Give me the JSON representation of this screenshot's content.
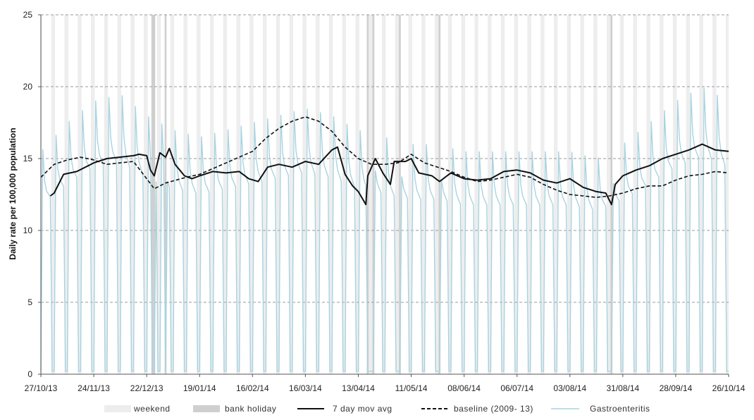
{
  "chart_data": {
    "type": "line",
    "title": "",
    "xlabel": "",
    "ylabel": "Daily rate per 100,000 population",
    "x_range": [
      "2013-10-27",
      "2014-10-26"
    ],
    "ylim": [
      0,
      25
    ],
    "y_ticks": [
      "0",
      "5",
      "10",
      "15",
      "20",
      "25"
    ],
    "x_ticks": [
      {
        "date": "2013-10-27",
        "label": "27/10/13"
      },
      {
        "date": "2013-11-24",
        "label": "24/11/13"
      },
      {
        "date": "2013-12-22",
        "label": "22/12/13"
      },
      {
        "date": "2014-01-19",
        "label": "19/01/14"
      },
      {
        "date": "2014-02-16",
        "label": "16/02/14"
      },
      {
        "date": "2014-03-16",
        "label": "16/03/14"
      },
      {
        "date": "2014-04-13",
        "label": "13/04/14"
      },
      {
        "date": "2014-05-11",
        "label": "11/05/14"
      },
      {
        "date": "2014-06-08",
        "label": "08/06/14"
      },
      {
        "date": "2014-07-06",
        "label": "06/07/14"
      },
      {
        "date": "2014-08-03",
        "label": "03/08/14"
      },
      {
        "date": "2014-08-31",
        "label": "31/08/14"
      },
      {
        "date": "2014-09-28",
        "label": "28/09/14"
      },
      {
        "date": "2014-10-26",
        "label": "26/10/14"
      }
    ],
    "grid": true,
    "legend_position": "bottom",
    "legend": [
      {
        "key": "weekend",
        "label": "weekend",
        "color": "#ededed",
        "style": "band"
      },
      {
        "key": "bank_holiday",
        "label": "bank holiday",
        "color": "#cfcfcf",
        "style": "band"
      },
      {
        "key": "mov_avg",
        "label": "7 day mov avg",
        "color": "#111111",
        "style": "solid"
      },
      {
        "key": "baseline",
        "label": "baseline (2009- 13)",
        "color": "#111111",
        "style": "dashed"
      },
      {
        "key": "gastro",
        "label": "Gastroenteritis",
        "color": "#a9d3e0",
        "style": "solid"
      }
    ],
    "bank_holidays": [
      "2013-12-25",
      "2013-12-26",
      "2014-01-01",
      "2014-04-18",
      "2014-04-21",
      "2014-05-05",
      "2014-05-26",
      "2014-08-25"
    ],
    "series": [
      {
        "key": "gastro",
        "name": "Gastroenteritis",
        "weekday_level": [
          [
            "2013-10-27",
            15.5
          ],
          [
            "2013-11-10",
            17.5
          ],
          [
            "2013-11-24",
            19.0
          ],
          [
            "2013-12-08",
            19.5
          ],
          [
            "2013-12-22",
            18.0
          ],
          [
            "2014-01-05",
            17.0
          ],
          [
            "2014-01-19",
            16.5
          ],
          [
            "2014-02-02",
            17.0
          ],
          [
            "2014-02-16",
            17.5
          ],
          [
            "2014-03-02",
            18.0
          ],
          [
            "2014-03-16",
            18.5
          ],
          [
            "2014-03-30",
            18.0
          ],
          [
            "2014-04-13",
            17.0
          ],
          [
            "2014-04-27",
            16.5
          ],
          [
            "2014-05-11",
            16.0
          ],
          [
            "2014-05-25",
            16.0
          ],
          [
            "2014-06-08",
            15.5
          ],
          [
            "2014-06-22",
            15.5
          ],
          [
            "2014-07-06",
            15.5
          ],
          [
            "2014-07-20",
            15.5
          ],
          [
            "2014-08-03",
            15.5
          ],
          [
            "2014-08-17",
            15.0
          ],
          [
            "2014-08-31",
            16.0
          ],
          [
            "2014-09-14",
            17.5
          ],
          [
            "2014-09-28",
            19.0
          ],
          [
            "2014-10-12",
            20.0
          ],
          [
            "2014-10-26",
            19.0
          ]
        ],
        "weekend_value": 0.2
      },
      {
        "key": "mov_avg",
        "name": "7 day mov avg",
        "points": [
          [
            "2013-11-01",
            12.4
          ],
          [
            "2013-11-03",
            12.6
          ],
          [
            "2013-11-08",
            13.9
          ],
          [
            "2013-11-15",
            14.1
          ],
          [
            "2013-11-24",
            14.7
          ],
          [
            "2013-12-01",
            15.0
          ],
          [
            "2013-12-08",
            15.1
          ],
          [
            "2013-12-15",
            15.2
          ],
          [
            "2013-12-18",
            15.3
          ],
          [
            "2013-12-22",
            15.2
          ],
          [
            "2013-12-24",
            14.2
          ],
          [
            "2013-12-26",
            13.8
          ],
          [
            "2013-12-29",
            15.4
          ],
          [
            "2014-01-01",
            15.1
          ],
          [
            "2014-01-03",
            15.7
          ],
          [
            "2014-01-06",
            14.6
          ],
          [
            "2014-01-11",
            13.8
          ],
          [
            "2014-01-15",
            13.6
          ],
          [
            "2014-01-19",
            13.8
          ],
          [
            "2014-01-26",
            14.1
          ],
          [
            "2014-02-02",
            14.0
          ],
          [
            "2014-02-09",
            14.1
          ],
          [
            "2014-02-14",
            13.6
          ],
          [
            "2014-02-19",
            13.4
          ],
          [
            "2014-02-24",
            14.4
          ],
          [
            "2014-03-02",
            14.6
          ],
          [
            "2014-03-09",
            14.4
          ],
          [
            "2014-03-16",
            14.8
          ],
          [
            "2014-03-23",
            14.6
          ],
          [
            "2014-03-30",
            15.6
          ],
          [
            "2014-04-02",
            15.8
          ],
          [
            "2014-04-06",
            13.9
          ],
          [
            "2014-04-10",
            13.1
          ],
          [
            "2014-04-13",
            12.7
          ],
          [
            "2014-04-17",
            11.8
          ],
          [
            "2014-04-18",
            13.8
          ],
          [
            "2014-04-22",
            15.0
          ],
          [
            "2014-04-26",
            14.0
          ],
          [
            "2014-04-30",
            13.2
          ],
          [
            "2014-05-02",
            14.8
          ],
          [
            "2014-05-08",
            14.8
          ],
          [
            "2014-05-11",
            15.0
          ],
          [
            "2014-05-15",
            14.0
          ],
          [
            "2014-05-22",
            13.8
          ],
          [
            "2014-05-26",
            13.4
          ],
          [
            "2014-06-01",
            14.0
          ],
          [
            "2014-06-08",
            13.6
          ],
          [
            "2014-06-15",
            13.5
          ],
          [
            "2014-06-22",
            13.6
          ],
          [
            "2014-06-29",
            14.1
          ],
          [
            "2014-07-06",
            14.2
          ],
          [
            "2014-07-13",
            14.0
          ],
          [
            "2014-07-20",
            13.5
          ],
          [
            "2014-07-27",
            13.3
          ],
          [
            "2014-08-03",
            13.6
          ],
          [
            "2014-08-10",
            13.0
          ],
          [
            "2014-08-17",
            12.7
          ],
          [
            "2014-08-22",
            12.6
          ],
          [
            "2014-08-25",
            11.8
          ],
          [
            "2014-08-27",
            13.2
          ],
          [
            "2014-08-31",
            13.8
          ],
          [
            "2014-09-07",
            14.2
          ],
          [
            "2014-09-14",
            14.5
          ],
          [
            "2014-09-21",
            15.0
          ],
          [
            "2014-09-28",
            15.3
          ],
          [
            "2014-10-05",
            15.6
          ],
          [
            "2014-10-12",
            16.0
          ],
          [
            "2014-10-19",
            15.6
          ],
          [
            "2014-10-26",
            15.5
          ]
        ]
      },
      {
        "key": "baseline",
        "name": "baseline (2009- 13)",
        "points": [
          [
            "2013-10-27",
            13.7
          ],
          [
            "2013-11-03",
            14.6
          ],
          [
            "2013-11-10",
            14.9
          ],
          [
            "2013-11-17",
            15.1
          ],
          [
            "2013-11-24",
            14.9
          ],
          [
            "2013-12-01",
            14.6
          ],
          [
            "2013-12-08",
            14.7
          ],
          [
            "2013-12-15",
            14.8
          ],
          [
            "2013-12-22",
            13.6
          ],
          [
            "2013-12-26",
            12.9
          ],
          [
            "2014-01-01",
            13.3
          ],
          [
            "2014-01-12",
            13.7
          ],
          [
            "2014-01-19",
            13.9
          ],
          [
            "2014-01-26",
            14.3
          ],
          [
            "2014-02-09",
            15.1
          ],
          [
            "2014-02-16",
            15.5
          ],
          [
            "2014-02-23",
            16.4
          ],
          [
            "2014-03-02",
            17.1
          ],
          [
            "2014-03-09",
            17.6
          ],
          [
            "2014-03-16",
            17.9
          ],
          [
            "2014-03-23",
            17.6
          ],
          [
            "2014-03-30",
            16.9
          ],
          [
            "2014-04-06",
            15.8
          ],
          [
            "2014-04-13",
            15.0
          ],
          [
            "2014-04-20",
            14.6
          ],
          [
            "2014-04-27",
            14.6
          ],
          [
            "2014-05-04",
            14.7
          ],
          [
            "2014-05-11",
            15.3
          ],
          [
            "2014-05-18",
            14.7
          ],
          [
            "2014-05-25",
            14.4
          ],
          [
            "2014-06-01",
            14.1
          ],
          [
            "2014-06-08",
            13.7
          ],
          [
            "2014-06-15",
            13.4
          ],
          [
            "2014-06-22",
            13.5
          ],
          [
            "2014-06-29",
            13.7
          ],
          [
            "2014-07-06",
            13.9
          ],
          [
            "2014-07-13",
            13.7
          ],
          [
            "2014-07-20",
            13.2
          ],
          [
            "2014-07-27",
            12.8
          ],
          [
            "2014-08-03",
            12.5
          ],
          [
            "2014-08-10",
            12.4
          ],
          [
            "2014-08-17",
            12.3
          ],
          [
            "2014-08-24",
            12.4
          ],
          [
            "2014-08-31",
            12.6
          ],
          [
            "2014-09-07",
            12.9
          ],
          [
            "2014-09-14",
            13.1
          ],
          [
            "2014-09-21",
            13.1
          ],
          [
            "2014-09-28",
            13.5
          ],
          [
            "2014-10-05",
            13.8
          ],
          [
            "2014-10-12",
            13.9
          ],
          [
            "2014-10-19",
            14.1
          ],
          [
            "2014-10-26",
            14.0
          ]
        ]
      }
    ]
  }
}
